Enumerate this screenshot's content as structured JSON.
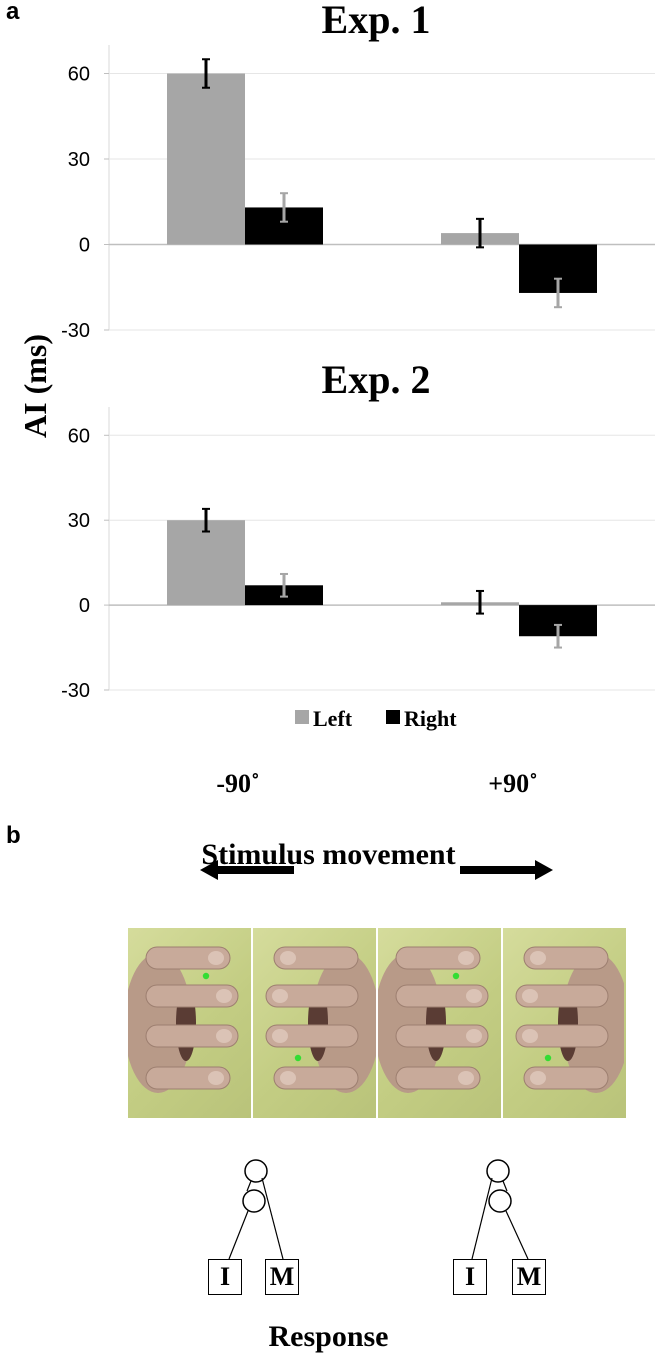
{
  "panel_a_letter": "a",
  "panel_b_letter": "b",
  "chart_data": [
    {
      "type": "bar",
      "title": "Exp. 1",
      "ylabel": "AI (ms)",
      "categories": [
        "-90˚",
        "+90˚"
      ],
      "ylim": [
        -30,
        70
      ],
      "yticks": [
        "60",
        "30",
        "0",
        "-30"
      ],
      "grid": true,
      "series": [
        {
          "name": "Left",
          "values": [
            60,
            4
          ],
          "errors": [
            5,
            5
          ],
          "color": "#a6a6a6",
          "error_color": "#000000"
        },
        {
          "name": "Right",
          "values": [
            13,
            -17
          ],
          "errors": [
            5,
            5
          ],
          "color": "#000000",
          "error_color": "#a6a6a6"
        }
      ]
    },
    {
      "type": "bar",
      "title": "Exp. 2",
      "ylabel": "AI (ms)",
      "categories": [
        "-90˚",
        "+90˚"
      ],
      "ylim": [
        -30,
        70
      ],
      "yticks": [
        "60",
        "30",
        "0",
        "-30"
      ],
      "grid": true,
      "series": [
        {
          "name": "Left",
          "values": [
            30,
            1
          ],
          "errors": [
            4,
            4
          ],
          "color": "#a6a6a6",
          "error_color": "#000000"
        },
        {
          "name": "Right",
          "values": [
            7,
            -11
          ],
          "errors": [
            4,
            4
          ],
          "color": "#000000",
          "error_color": "#a6a6a6"
        }
      ]
    }
  ],
  "shared": {
    "ylabel": "AI (ms)",
    "legend": [
      {
        "name": "Left",
        "color": "#a6a6a6"
      },
      {
        "name": "Right",
        "color": "#000000"
      }
    ],
    "legend_position": "bottom-center",
    "categories": [
      "-90˚",
      "+90˚"
    ]
  },
  "panel_b": {
    "title": "Stimulus movement",
    "response_label": "Response",
    "arrows": [
      "left-arrow",
      "right-arrow"
    ],
    "finger_labels": [
      "I",
      "M",
      "I",
      "M"
    ],
    "target_dot_color": "#33dd33"
  }
}
